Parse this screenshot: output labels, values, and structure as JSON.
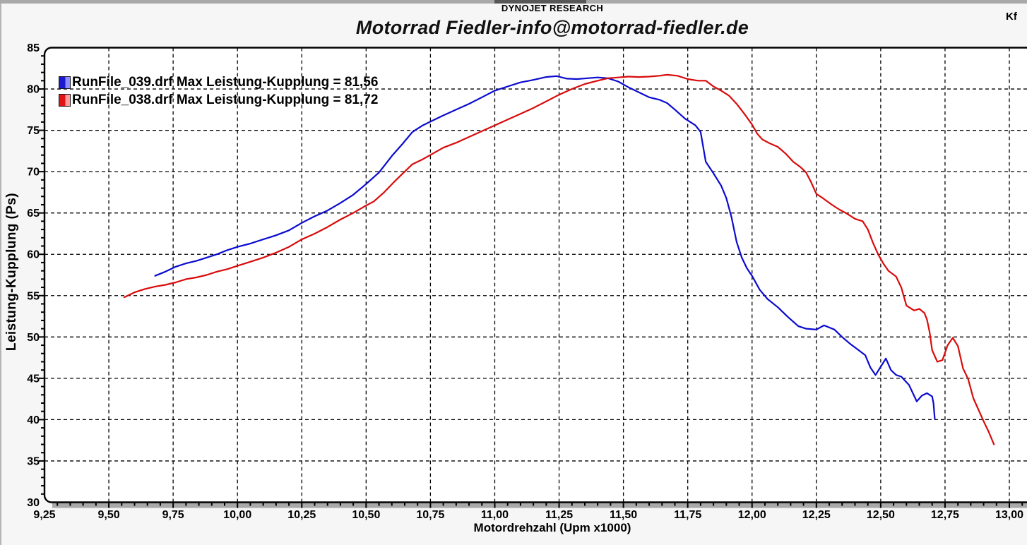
{
  "window": {
    "top_bar_color": "#a9a9a9",
    "tab_indicator_color": "#575757",
    "corner_text": "Kf"
  },
  "header": {
    "brand": "DYNOJET RESEARCH",
    "title": "Motorrad Fiedler-info@motorrad-fiedler.de"
  },
  "legend": [
    {
      "label": "RunFile_039.drf Max Leistung-Kupplung = 81,56",
      "color": "#1a1ad2",
      "color_light": "#8f8fff"
    },
    {
      "label": "RunFile_038.drf Max Leistung-Kupplung = 81,72",
      "color": "#e01414",
      "color_light": "#ff9d9d"
    }
  ],
  "chart_data": {
    "type": "line",
    "title": "Motorrad Fiedler-info@motorrad-fiedler.de",
    "xlabel": "Motordrehzahl (Upm x1000)",
    "ylabel": "Leistung-Kupplung (Ps)",
    "xlim": [
      9.25,
      13.0
    ],
    "ylim": [
      30,
      85
    ],
    "x_major": 0.25,
    "x_minor": 0.05,
    "y_major": 5,
    "y_minor": 1,
    "grid": "dashed",
    "legend_position": "top-left",
    "x_tick_labels": [
      "9,25",
      "9,50",
      "9,75",
      "10,00",
      "10,25",
      "10,50",
      "10,75",
      "11,00",
      "11,25",
      "11,50",
      "11,75",
      "12,00",
      "12,25",
      "12,50",
      "12,75",
      "13,00"
    ],
    "y_tick_labels": [
      "85",
      "80",
      "75",
      "70",
      "65",
      "60",
      "55",
      "50",
      "45",
      "40",
      "35",
      "30"
    ],
    "series": [
      {
        "name": "RunFile_039.drf",
        "max_value": 81.56,
        "max_label": "Max Leistung-Kupplung = 81,56",
        "color": "#0b0bd0",
        "points": [
          [
            9.68,
            57.4
          ],
          [
            9.72,
            57.9
          ],
          [
            9.76,
            58.5
          ],
          [
            9.8,
            58.9
          ],
          [
            9.84,
            59.2
          ],
          [
            9.88,
            59.6
          ],
          [
            9.92,
            60.0
          ],
          [
            9.96,
            60.5
          ],
          [
            10.0,
            60.9
          ],
          [
            10.05,
            61.3
          ],
          [
            10.1,
            61.8
          ],
          [
            10.15,
            62.3
          ],
          [
            10.2,
            62.9
          ],
          [
            10.25,
            63.8
          ],
          [
            10.3,
            64.6
          ],
          [
            10.35,
            65.3
          ],
          [
            10.4,
            66.2
          ],
          [
            10.45,
            67.2
          ],
          [
            10.5,
            68.5
          ],
          [
            10.55,
            69.9
          ],
          [
            10.6,
            71.9
          ],
          [
            10.64,
            73.3
          ],
          [
            10.68,
            74.8
          ],
          [
            10.72,
            75.6
          ],
          [
            10.76,
            76.2
          ],
          [
            10.8,
            76.8
          ],
          [
            10.85,
            77.5
          ],
          [
            10.9,
            78.2
          ],
          [
            10.95,
            79.0
          ],
          [
            11.0,
            79.8
          ],
          [
            11.05,
            80.3
          ],
          [
            11.1,
            80.8
          ],
          [
            11.15,
            81.1
          ],
          [
            11.2,
            81.45
          ],
          [
            11.24,
            81.56
          ],
          [
            11.28,
            81.25
          ],
          [
            11.32,
            81.2
          ],
          [
            11.36,
            81.3
          ],
          [
            11.4,
            81.4
          ],
          [
            11.44,
            81.3
          ],
          [
            11.48,
            80.9
          ],
          [
            11.52,
            80.2
          ],
          [
            11.56,
            79.6
          ],
          [
            11.6,
            79.0
          ],
          [
            11.64,
            78.7
          ],
          [
            11.67,
            78.3
          ],
          [
            11.7,
            77.5
          ],
          [
            11.74,
            76.4
          ],
          [
            11.78,
            75.6
          ],
          [
            11.8,
            74.8
          ],
          [
            11.82,
            71.2
          ],
          [
            11.85,
            69.8
          ],
          [
            11.88,
            68.3
          ],
          [
            11.9,
            66.8
          ],
          [
            11.92,
            64.5
          ],
          [
            11.94,
            61.5
          ],
          [
            11.96,
            59.6
          ],
          [
            11.98,
            58.3
          ],
          [
            12.0,
            57.4
          ],
          [
            12.03,
            55.7
          ],
          [
            12.06,
            54.6
          ],
          [
            12.1,
            53.6
          ],
          [
            12.14,
            52.4
          ],
          [
            12.18,
            51.3
          ],
          [
            12.21,
            51.0
          ],
          [
            12.25,
            50.9
          ],
          [
            12.28,
            51.4
          ],
          [
            12.32,
            50.9
          ],
          [
            12.35,
            50.0
          ],
          [
            12.38,
            49.2
          ],
          [
            12.41,
            48.5
          ],
          [
            12.44,
            47.8
          ],
          [
            12.46,
            46.3
          ],
          [
            12.48,
            45.4
          ],
          [
            12.5,
            46.4
          ],
          [
            12.52,
            47.4
          ],
          [
            12.54,
            46.0
          ],
          [
            12.56,
            45.4
          ],
          [
            12.58,
            45.2
          ],
          [
            12.61,
            44.2
          ],
          [
            12.64,
            42.2
          ],
          [
            12.66,
            42.9
          ],
          [
            12.68,
            43.2
          ],
          [
            12.7,
            42.8
          ],
          [
            12.705,
            42.0
          ],
          [
            12.71,
            40.1
          ]
        ]
      },
      {
        "name": "RunFile_038.drf",
        "max_value": 81.72,
        "max_label": "Max Leistung-Kupplung = 81,72",
        "color": "#d90b0b",
        "points": [
          [
            9.56,
            54.8
          ],
          [
            9.6,
            55.4
          ],
          [
            9.64,
            55.8
          ],
          [
            9.68,
            56.1
          ],
          [
            9.72,
            56.3
          ],
          [
            9.76,
            56.6
          ],
          [
            9.8,
            57.0
          ],
          [
            9.84,
            57.2
          ],
          [
            9.88,
            57.5
          ],
          [
            9.92,
            57.9
          ],
          [
            9.96,
            58.2
          ],
          [
            10.0,
            58.6
          ],
          [
            10.05,
            59.1
          ],
          [
            10.1,
            59.6
          ],
          [
            10.15,
            60.2
          ],
          [
            10.2,
            60.9
          ],
          [
            10.25,
            61.8
          ],
          [
            10.3,
            62.5
          ],
          [
            10.35,
            63.3
          ],
          [
            10.4,
            64.2
          ],
          [
            10.45,
            65.0
          ],
          [
            10.5,
            65.9
          ],
          [
            10.53,
            66.4
          ],
          [
            10.57,
            67.5
          ],
          [
            10.61,
            68.8
          ],
          [
            10.65,
            70.0
          ],
          [
            10.68,
            70.9
          ],
          [
            10.72,
            71.5
          ],
          [
            10.76,
            72.2
          ],
          [
            10.8,
            72.9
          ],
          [
            10.85,
            73.5
          ],
          [
            10.9,
            74.2
          ],
          [
            10.95,
            74.9
          ],
          [
            11.0,
            75.6
          ],
          [
            11.05,
            76.3
          ],
          [
            11.1,
            77.0
          ],
          [
            11.15,
            77.7
          ],
          [
            11.2,
            78.5
          ],
          [
            11.25,
            79.3
          ],
          [
            11.3,
            80.0
          ],
          [
            11.35,
            80.6
          ],
          [
            11.4,
            81.0
          ],
          [
            11.44,
            81.3
          ],
          [
            11.48,
            81.4
          ],
          [
            11.52,
            81.5
          ],
          [
            11.56,
            81.45
          ],
          [
            11.6,
            81.5
          ],
          [
            11.64,
            81.6
          ],
          [
            11.67,
            81.72
          ],
          [
            11.71,
            81.6
          ],
          [
            11.75,
            81.2
          ],
          [
            11.79,
            81.0
          ],
          [
            11.82,
            81.0
          ],
          [
            11.85,
            80.3
          ],
          [
            11.88,
            79.8
          ],
          [
            11.91,
            79.2
          ],
          [
            11.94,
            78.2
          ],
          [
            11.97,
            77.0
          ],
          [
            12.0,
            75.7
          ],
          [
            12.02,
            74.6
          ],
          [
            12.04,
            73.9
          ],
          [
            12.07,
            73.4
          ],
          [
            12.1,
            73.0
          ],
          [
            12.13,
            72.2
          ],
          [
            12.16,
            71.2
          ],
          [
            12.19,
            70.5
          ],
          [
            12.21,
            69.9
          ],
          [
            12.23,
            68.7
          ],
          [
            12.25,
            67.3
          ],
          [
            12.27,
            66.9
          ],
          [
            12.31,
            66.0
          ],
          [
            12.34,
            65.4
          ],
          [
            12.37,
            64.9
          ],
          [
            12.4,
            64.3
          ],
          [
            12.43,
            64.0
          ],
          [
            12.45,
            63.0
          ],
          [
            12.47,
            61.4
          ],
          [
            12.49,
            60.0
          ],
          [
            12.51,
            58.9
          ],
          [
            12.53,
            58.0
          ],
          [
            12.56,
            57.3
          ],
          [
            12.58,
            56.0
          ],
          [
            12.6,
            53.8
          ],
          [
            12.63,
            53.2
          ],
          [
            12.65,
            53.4
          ],
          [
            12.67,
            52.9
          ],
          [
            12.68,
            52.1
          ],
          [
            12.69,
            50.6
          ],
          [
            12.7,
            48.4
          ],
          [
            12.72,
            47.0
          ],
          [
            12.74,
            47.2
          ],
          [
            12.76,
            49.0
          ],
          [
            12.78,
            49.9
          ],
          [
            12.8,
            48.9
          ],
          [
            12.82,
            46.2
          ],
          [
            12.84,
            44.9
          ],
          [
            12.86,
            42.6
          ],
          [
            12.88,
            41.2
          ],
          [
            12.9,
            39.8
          ],
          [
            12.92,
            38.5
          ],
          [
            12.94,
            37.0
          ]
        ]
      }
    ],
    "colors": {
      "plot_background": "#ffffff",
      "grid": "#000000",
      "shadow_band": "#a9a9a9"
    }
  }
}
